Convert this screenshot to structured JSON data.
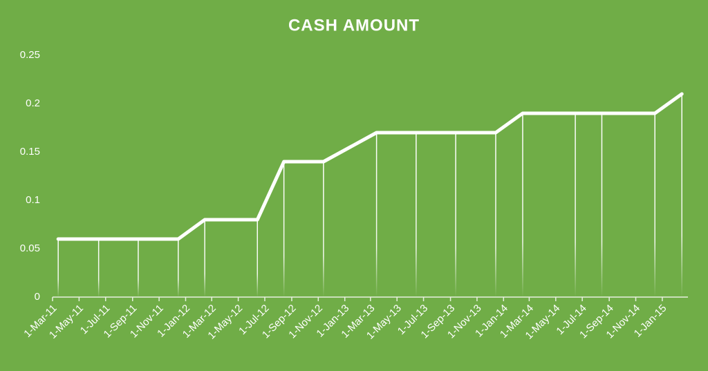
{
  "chart_data": {
    "type": "line",
    "title": "CASH AMOUNT",
    "x": [
      "2011-03-14",
      "2011-06-15",
      "2011-09-14",
      "2011-12-15",
      "2012-02-14",
      "2012-06-14",
      "2012-08-14",
      "2012-11-13",
      "2013-03-15",
      "2013-06-14",
      "2013-09-13",
      "2013-12-14",
      "2014-02-14",
      "2014-06-15",
      "2014-08-15",
      "2014-12-15",
      "2015-02-15"
    ],
    "series": [
      {
        "name": "Cash Amount",
        "color": "#ffffff",
        "values": [
          0.06,
          0.06,
          0.06,
          0.06,
          0.08,
          0.08,
          0.14,
          0.14,
          0.17,
          0.17,
          0.17,
          0.17,
          0.19,
          0.19,
          0.19,
          0.19,
          0.21
        ]
      }
    ],
    "ylim": [
      0,
      0.25
    ],
    "yticks": [
      0,
      0.05,
      0.1,
      0.15,
      0.2,
      0.25
    ],
    "xlim": [
      "2011-03-01",
      "2015-03-01"
    ],
    "xticks": [
      {
        "value": "2011-03-01",
        "label": "1-Mar-11"
      },
      {
        "value": "2011-05-01",
        "label": "1-May-11"
      },
      {
        "value": "2011-07-01",
        "label": "1-Jul-11"
      },
      {
        "value": "2011-09-01",
        "label": "1-Sep-11"
      },
      {
        "value": "2011-11-01",
        "label": "1-Nov-11"
      },
      {
        "value": "2012-01-01",
        "label": "1-Jan-12"
      },
      {
        "value": "2012-03-01",
        "label": "1-Mar-12"
      },
      {
        "value": "2012-05-01",
        "label": "1-May-12"
      },
      {
        "value": "2012-07-01",
        "label": "1-Jul-12"
      },
      {
        "value": "2012-09-01",
        "label": "1-Sep-12"
      },
      {
        "value": "2012-11-01",
        "label": "1-Nov-12"
      },
      {
        "value": "2013-01-01",
        "label": "1-Jan-13"
      },
      {
        "value": "2013-03-01",
        "label": "1-Mar-13"
      },
      {
        "value": "2013-05-01",
        "label": "1-May-13"
      },
      {
        "value": "2013-07-01",
        "label": "1-Jul-13"
      },
      {
        "value": "2013-09-01",
        "label": "1-Sep-13"
      },
      {
        "value": "2013-11-01",
        "label": "1-Nov-13"
      },
      {
        "value": "2014-01-01",
        "label": "1-Jan-14"
      },
      {
        "value": "2014-03-01",
        "label": "1-Mar-14"
      },
      {
        "value": "2014-05-01",
        "label": "1-May-14"
      },
      {
        "value": "2014-07-01",
        "label": "1-Jul-14"
      },
      {
        "value": "2014-09-01",
        "label": "1-Sep-14"
      },
      {
        "value": "2014-11-01",
        "label": "1-Nov-14"
      },
      {
        "value": "2015-01-01",
        "label": "1-Jan-15"
      }
    ],
    "drop_lines": true,
    "grid": false,
    "background": "#70ad47"
  }
}
